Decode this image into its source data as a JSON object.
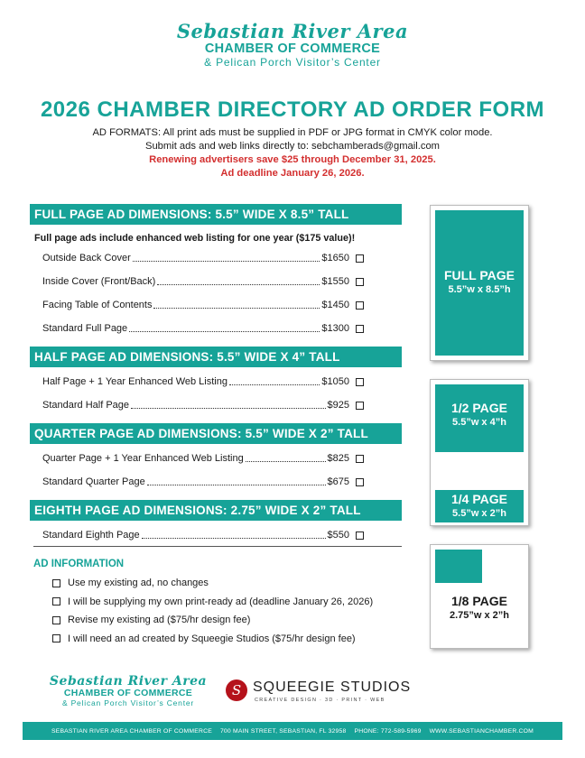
{
  "header": {
    "logo_script": "Sebastian River Area",
    "logo_chamber": "CHAMBER OF COMMERCE",
    "logo_pelican": "& Pelican Porch Visitor’s Center"
  },
  "title": "2026 CHAMBER DIRECTORY AD ORDER FORM",
  "intro": {
    "line1": "AD FORMATS: All print ads must be supplied in PDF or JPG format in CMYK color mode.",
    "line2": "Submit ads and web links directly to: sebchamberads@gmail.com",
    "line3": "Renewing advertisers save $25 through December 31, 2025.",
    "line4": "Ad deadline January 26, 2026."
  },
  "sections": [
    {
      "header": "FULL PAGE AD DIMENSIONS: 5.5” WIDE X 8.5” TALL",
      "note": "Full page ads include enhanced web listing for one year ($175 value)!",
      "items": [
        {
          "label": "Outside Back Cover",
          "price": "$1650"
        },
        {
          "label": "Inside Cover (Front/Back)",
          "price": "$1550"
        },
        {
          "label": "Facing Table of Contents ",
          "price": "$1450"
        },
        {
          "label": "Standard Full Page ",
          "price": "$1300"
        }
      ]
    },
    {
      "header": "HALF PAGE AD DIMENSIONS: 5.5” WIDE X 4” TALL",
      "items": [
        {
          "label": "Half Page + 1 Year Enhanced Web Listing ",
          "price": "$1050"
        },
        {
          "label": "Standard Half Page",
          "price": " $925"
        }
      ]
    },
    {
      "header": "QUARTER PAGE AD DIMENSIONS: 5.5” WIDE X 2” TALL",
      "items": [
        {
          "label": "Quarter Page + 1 Year Enhanced Web Listing ",
          "price": " $825"
        },
        {
          "label": "Standard Quarter Page",
          "price": " $675"
        }
      ]
    },
    {
      "header": "EIGHTH PAGE AD DIMENSIONS: 2.75” WIDE X 2” TALL",
      "items": [
        {
          "label": "Standard Eighth Page ",
          "price": " $550"
        }
      ]
    }
  ],
  "ad_info": {
    "header": "AD INFORMATION",
    "items": [
      "Use my existing ad, no changes",
      "I will be supplying my own print-ready ad (deadline January 26, 2026)",
      "Revise my existing ad ($75/hr design fee)",
      "I will need an ad created by Squeegie Studios ($75/hr design fee)"
    ]
  },
  "size_boxes": {
    "full": {
      "title": "FULL PAGE",
      "dims": "5.5”w x 8.5”h"
    },
    "half": {
      "title": "1/2 PAGE",
      "dims": "5.5”w x 4”h"
    },
    "quarter": {
      "title": "1/4 PAGE",
      "dims": "5.5”w x 2”h"
    },
    "eighth": {
      "title": "1/8 PAGE",
      "dims": "2.75”w x 2”h"
    }
  },
  "footer": {
    "sponsor_initial": "S",
    "sponsor_name": "SQUEEGIE STUDIOS",
    "sponsor_tagline": "CREATIVE DESIGN · 3D · PRINT · WEB",
    "org": "SEBASTIAN RIVER AREA CHAMBER OF COMMERCE",
    "address": "700 MAIN STREET, SEBASTIAN, FL 32958",
    "phone": "PHONE: 772-589-5969",
    "web": "WWW.SEBASTIANCHAMBER.COM"
  },
  "colors": {
    "accent": "#17a398",
    "red": "#d32f2f",
    "sponsor": "#b5121b"
  }
}
